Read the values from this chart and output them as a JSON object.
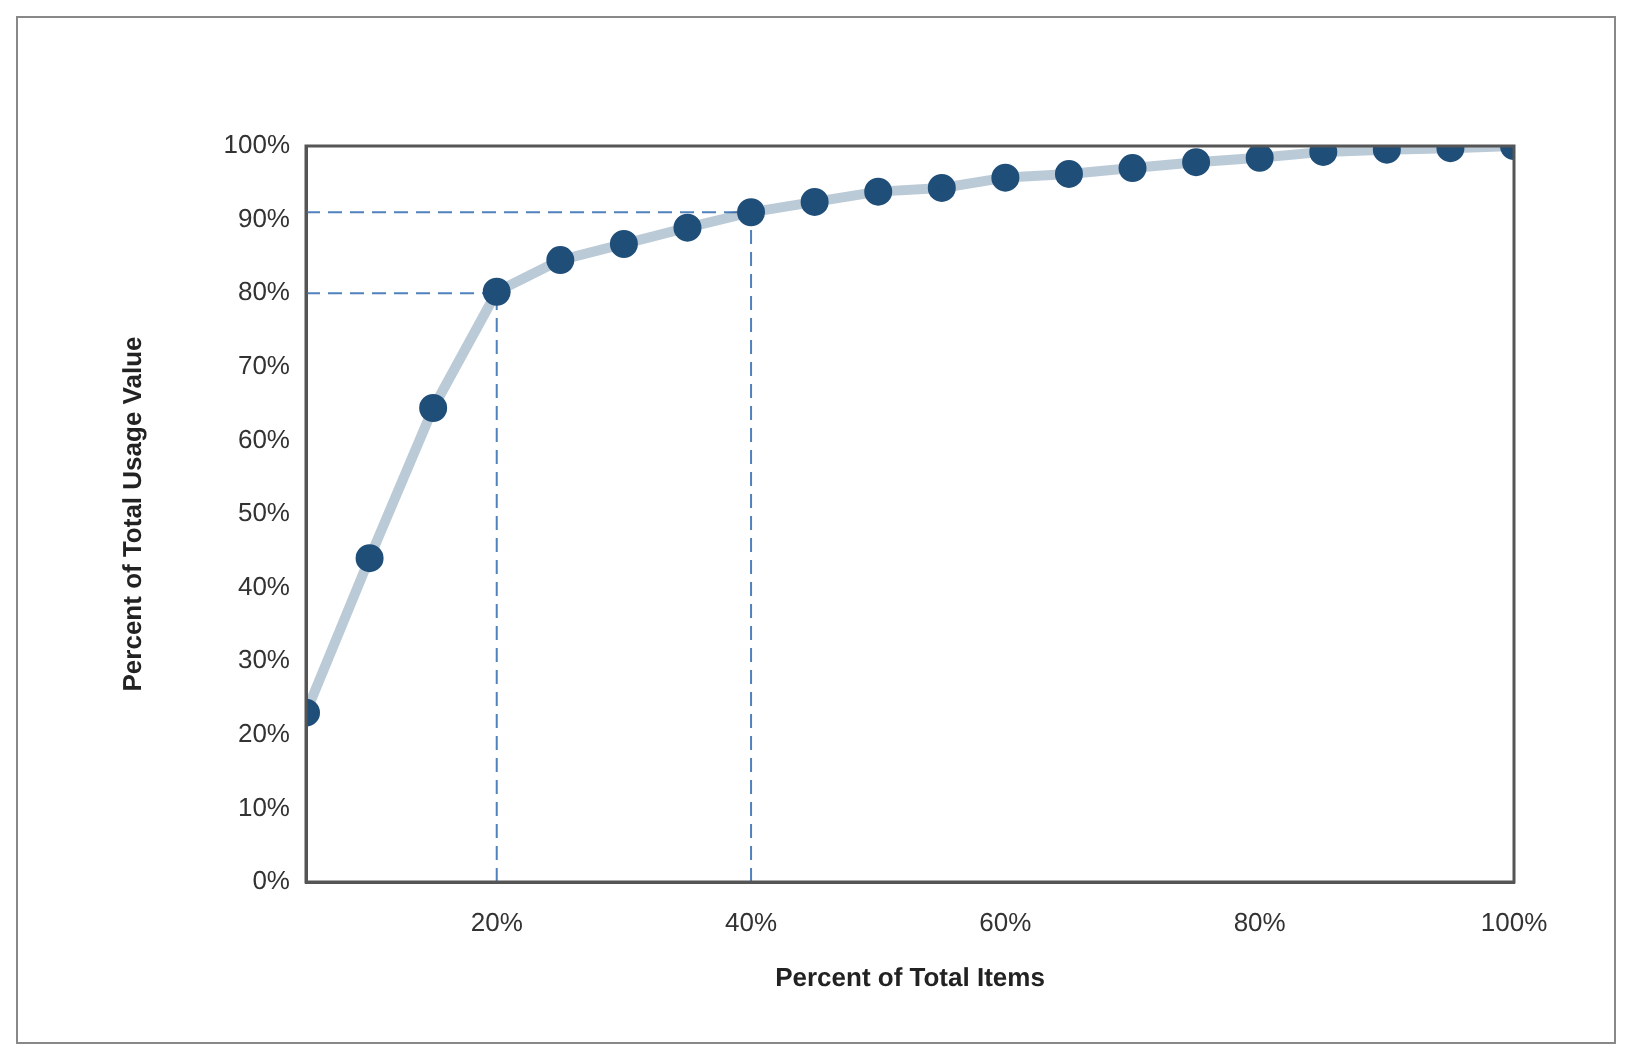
{
  "chart_data": {
    "type": "line",
    "xlabel": "Percent of Total Items",
    "ylabel": "Percent of Total Usage Value",
    "x": [
      5,
      10,
      15,
      20,
      25,
      30,
      35,
      40,
      45,
      50,
      55,
      60,
      65,
      70,
      75,
      80,
      85,
      90,
      95,
      100
    ],
    "series": [
      {
        "color": "#1f4e79",
        "values": [
          23,
          44,
          64.4,
          80.2,
          84.5,
          86.7,
          88.9,
          91,
          92.4,
          93.8,
          94.3,
          95.7,
          96.2,
          97,
          97.8,
          98.4,
          99.2,
          99.5,
          99.7,
          100
        ]
      }
    ],
    "xlim": [
      5,
      100
    ],
    "xticks": [
      {
        "value": 20,
        "label": "20%"
      },
      {
        "value": 40,
        "label": "40%"
      },
      {
        "value": 60,
        "label": "60%"
      },
      {
        "value": 80,
        "label": "80%"
      },
      {
        "value": 100,
        "label": "100%"
      }
    ],
    "ylim": [
      0,
      100
    ],
    "yticks": [
      {
        "value": 0,
        "label": "0%"
      },
      {
        "value": 10,
        "label": "10%"
      },
      {
        "value": 20,
        "label": "20%"
      },
      {
        "value": 30,
        "label": "30%"
      },
      {
        "value": 40,
        "label": "40%"
      },
      {
        "value": 50,
        "label": "50%"
      },
      {
        "value": 60,
        "label": "60%"
      },
      {
        "value": 70,
        "label": "70%"
      },
      {
        "value": 80,
        "label": "80%"
      },
      {
        "value": 90,
        "label": "90%"
      },
      {
        "value": 100,
        "label": "100%"
      }
    ],
    "ref_lines": [
      {
        "axis": "y",
        "value": 80,
        "color": "#4f81bd",
        "line_style": "dashed"
      },
      {
        "axis": "x",
        "value": 20,
        "color": "#4f81bd",
        "line_style": "dashed"
      },
      {
        "axis": "y",
        "value": 91,
        "color": "#4f81bd",
        "line_style": "dashed"
      },
      {
        "axis": "x",
        "value": 40,
        "color": "#4f81bd",
        "line_style": "dashed"
      }
    ],
    "grid": false,
    "legend": false,
    "marker": "circle",
    "line_style": "solid"
  }
}
